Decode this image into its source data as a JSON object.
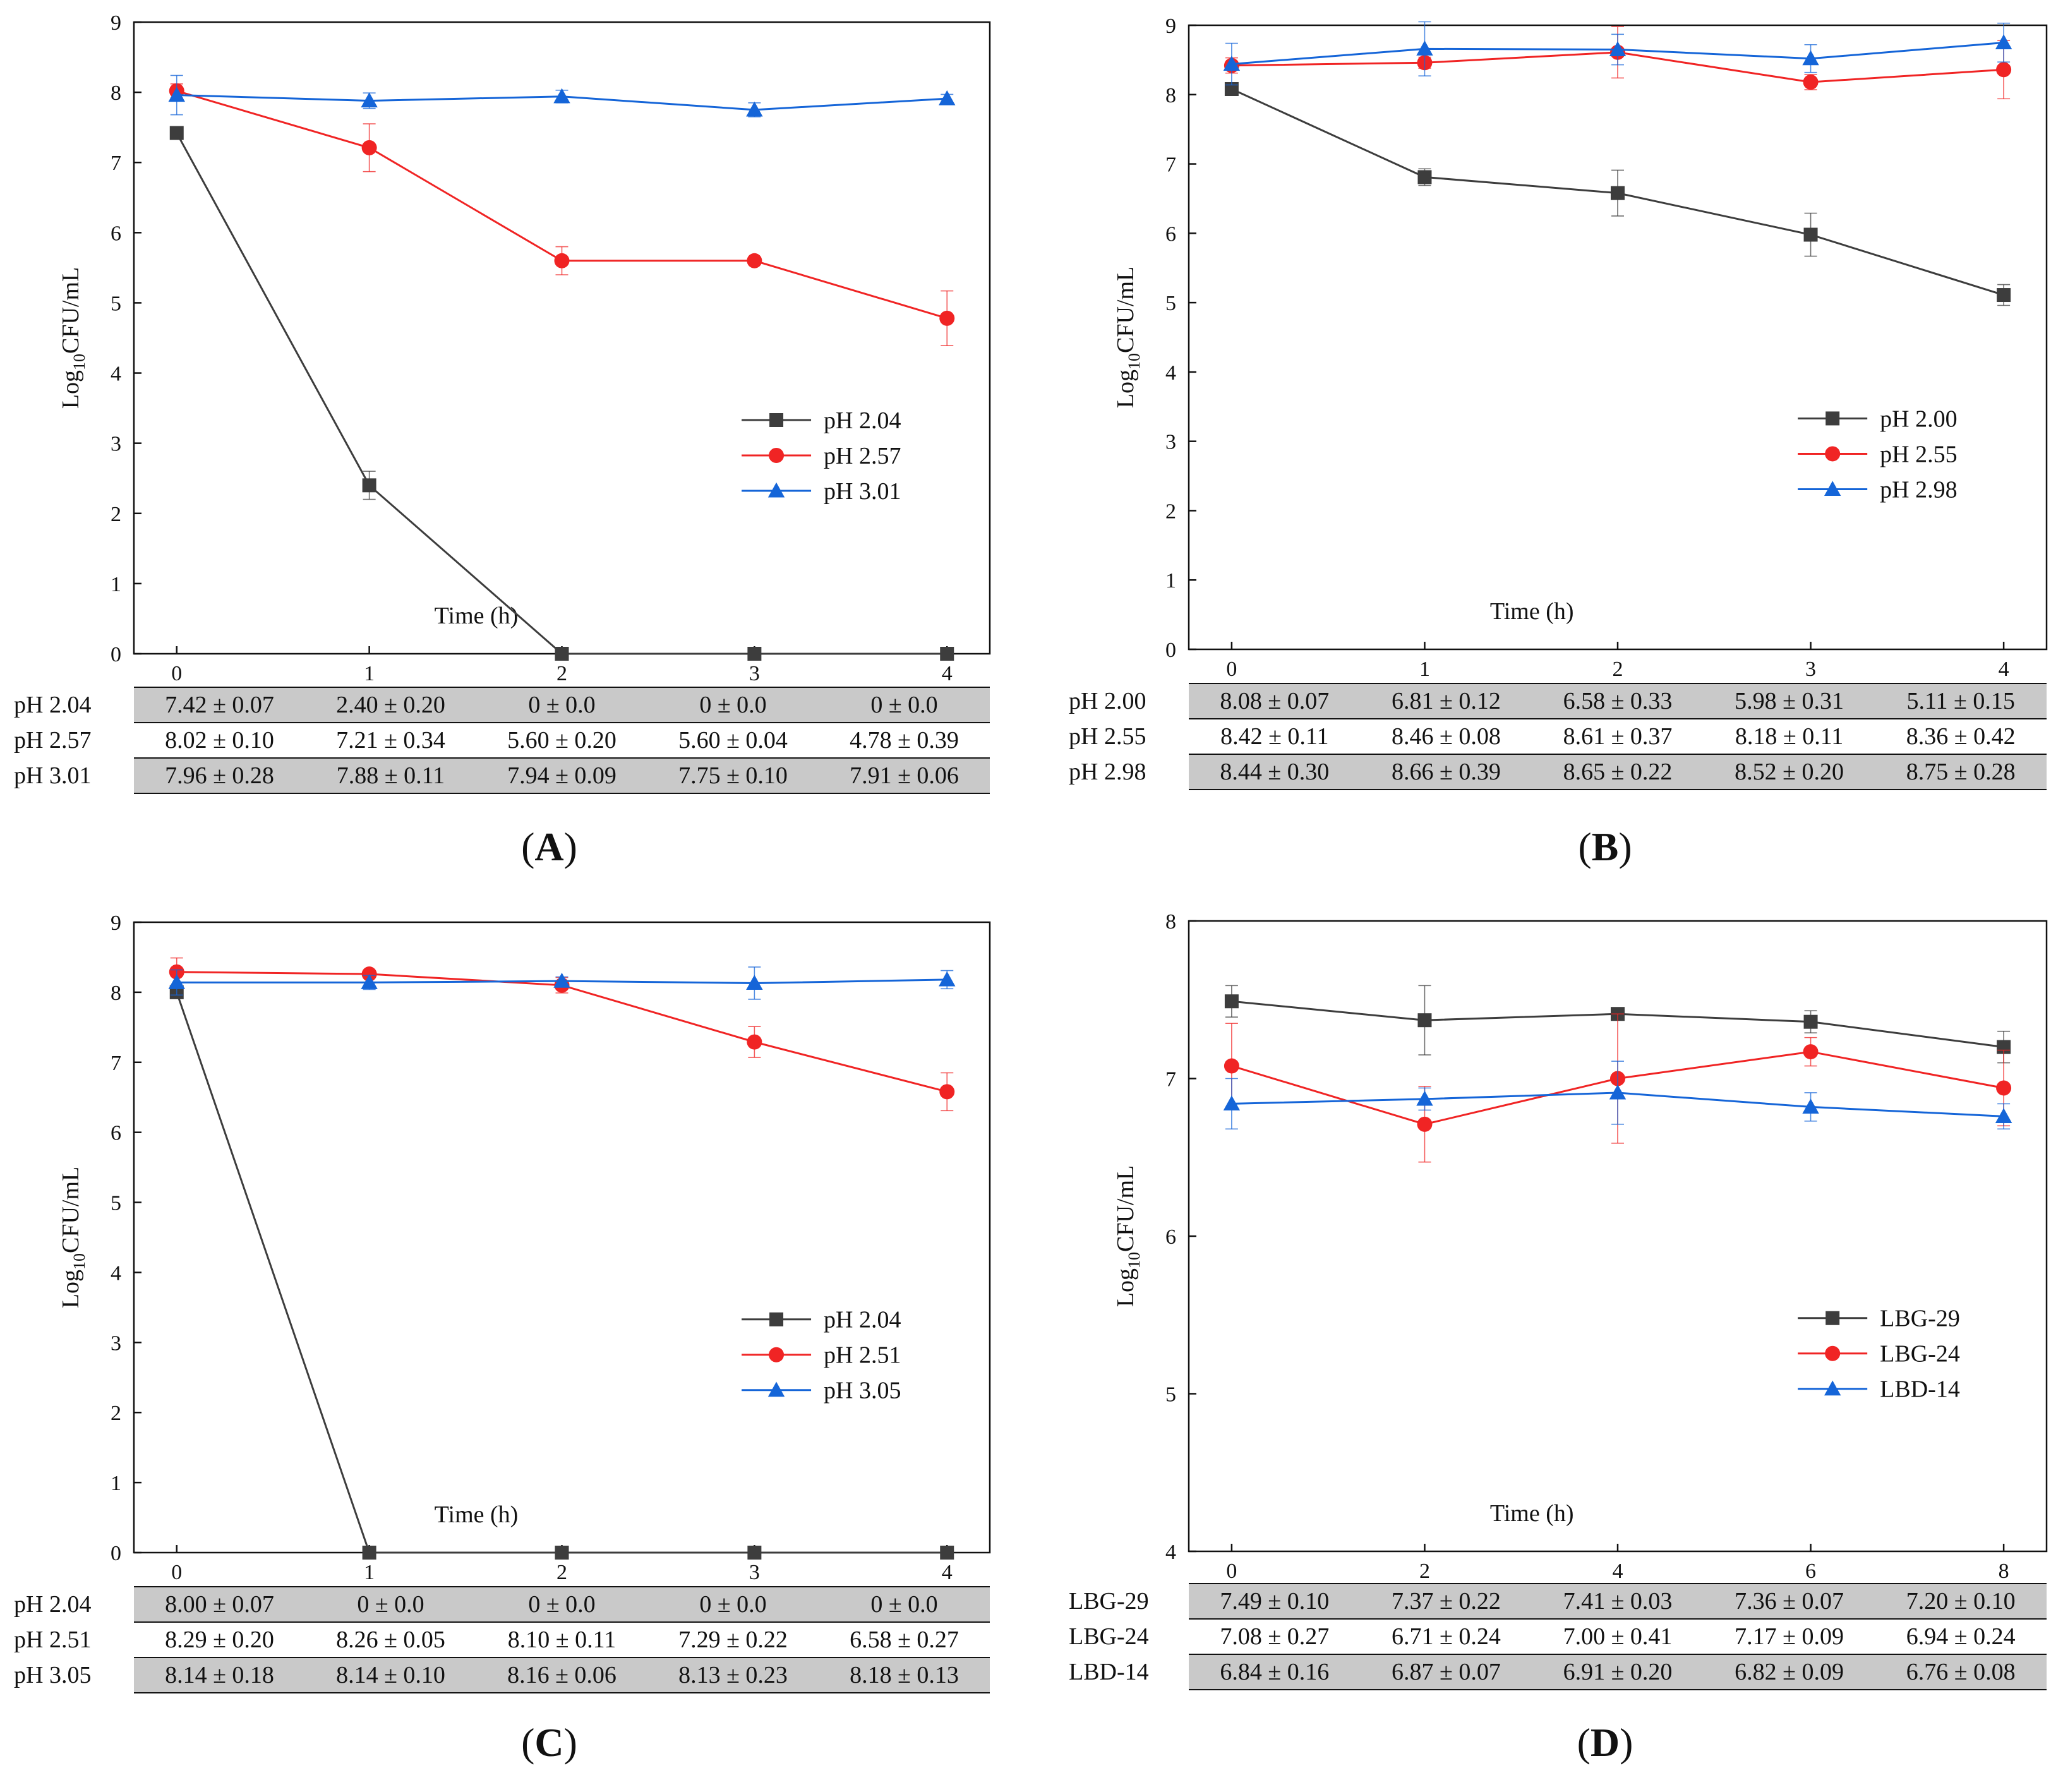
{
  "panels": [
    {
      "label": "(A)",
      "ylabel_main": "Log",
      "ylabel_sub": "10",
      "ylabel_rest": "CFU/mL",
      "xlabel": "Time (h)",
      "ylim": [
        0,
        9
      ],
      "yticks": [
        0,
        1,
        2,
        3,
        4,
        5,
        6,
        7,
        8,
        9
      ],
      "x": [
        0,
        1,
        2,
        3,
        4
      ],
      "legend_position": "center-right",
      "series": [
        {
          "name": "pH 2.04",
          "color": "#3d3d3d",
          "marker": "square",
          "values": [
            7.42,
            2.4,
            0,
            0,
            0
          ],
          "errors": [
            0.07,
            0.2,
            0,
            0,
            0
          ],
          "table": [
            "7.42 ± 0.07",
            "2.40 ± 0.20",
            "0 ± 0.0",
            "0 ± 0.0",
            "0 ± 0.0"
          ]
        },
        {
          "name": "pH 2.57",
          "color": "#f02424",
          "marker": "circle",
          "values": [
            8.02,
            7.21,
            5.6,
            5.6,
            4.78
          ],
          "errors": [
            0.1,
            0.34,
            0.2,
            0.04,
            0.39
          ],
          "table": [
            "8.02 ± 0.10",
            "7.21 ± 0.34",
            "5.60 ± 0.20",
            "5.60 ± 0.04",
            "4.78 ± 0.39"
          ]
        },
        {
          "name": "pH 3.01",
          "color": "#1565d8",
          "marker": "triangle",
          "values": [
            7.96,
            7.88,
            7.94,
            7.75,
            7.91
          ],
          "errors": [
            0.28,
            0.11,
            0.09,
            0.1,
            0.06
          ],
          "table": [
            "7.96 ± 0.28",
            "7.88 ± 0.11",
            "7.94 ± 0.09",
            "7.75 ± 0.10",
            "7.91 ± 0.06"
          ]
        }
      ]
    },
    {
      "label": "(B)",
      "ylabel_main": "Log",
      "ylabel_sub": "10",
      "ylabel_rest": "CFU/mL",
      "xlabel": "Time (h)",
      "ylim": [
        0,
        9
      ],
      "yticks": [
        0,
        1,
        2,
        3,
        4,
        5,
        6,
        7,
        8,
        9
      ],
      "x": [
        0,
        1,
        2,
        3,
        4
      ],
      "legend_position": "center-right",
      "series": [
        {
          "name": "pH 2.00",
          "color": "#3d3d3d",
          "marker": "square",
          "values": [
            8.08,
            6.81,
            6.58,
            5.98,
            5.11
          ],
          "errors": [
            0.07,
            0.12,
            0.33,
            0.31,
            0.15
          ],
          "table": [
            "8.08 ± 0.07",
            "6.81 ± 0.12",
            "6.58 ± 0.33",
            "5.98 ± 0.31",
            "5.11 ± 0.15"
          ]
        },
        {
          "name": "pH 2.55",
          "color": "#f02424",
          "marker": "circle",
          "values": [
            8.42,
            8.46,
            8.61,
            8.18,
            8.36
          ],
          "errors": [
            0.11,
            0.08,
            0.37,
            0.11,
            0.42
          ],
          "table": [
            "8.42 ± 0.11",
            "8.46 ± 0.08",
            "8.61 ± 0.37",
            "8.18 ± 0.11",
            "8.36 ± 0.42"
          ]
        },
        {
          "name": "pH 2.98",
          "color": "#1565d8",
          "marker": "triangle",
          "values": [
            8.44,
            8.66,
            8.65,
            8.52,
            8.75
          ],
          "errors": [
            0.3,
            0.39,
            0.22,
            0.2,
            0.28
          ],
          "table": [
            "8.44 ± 0.30",
            "8.66 ± 0.39",
            "8.65 ± 0.22",
            "8.52 ± 0.20",
            "8.75 ± 0.28"
          ]
        }
      ]
    },
    {
      "label": "(C)",
      "ylabel_main": "Log",
      "ylabel_sub": "10",
      "ylabel_rest": "CFU/mL",
      "xlabel": "Time (h)",
      "ylim": [
        0,
        9
      ],
      "yticks": [
        0,
        1,
        2,
        3,
        4,
        5,
        6,
        7,
        8,
        9
      ],
      "x": [
        0,
        1,
        2,
        3,
        4
      ],
      "legend_position": "center-right",
      "series": [
        {
          "name": "pH 2.04",
          "color": "#3d3d3d",
          "marker": "square",
          "values": [
            8.0,
            0,
            0,
            0,
            0
          ],
          "errors": [
            0.07,
            0,
            0,
            0,
            0
          ],
          "table": [
            "8.00 ± 0.07",
            "0 ± 0.0",
            "0 ± 0.0",
            "0 ± 0.0",
            "0 ± 0.0"
          ]
        },
        {
          "name": "pH 2.51",
          "color": "#f02424",
          "marker": "circle",
          "values": [
            8.29,
            8.26,
            8.1,
            7.29,
            6.58
          ],
          "errors": [
            0.2,
            0.05,
            0.11,
            0.22,
            0.27
          ],
          "table": [
            "8.29 ± 0.20",
            "8.26 ± 0.05",
            "8.10 ± 0.11",
            "7.29 ± 0.22",
            "6.58 ± 0.27"
          ]
        },
        {
          "name": "pH 3.05",
          "color": "#1565d8",
          "marker": "triangle",
          "values": [
            8.14,
            8.14,
            8.16,
            8.13,
            8.18
          ],
          "errors": [
            0.18,
            0.1,
            0.06,
            0.23,
            0.13
          ],
          "table": [
            "8.14 ± 0.18",
            "8.14 ± 0.10",
            "8.16 ± 0.06",
            "8.13 ± 0.23",
            "8.18 ± 0.13"
          ]
        }
      ]
    },
    {
      "label": "(D)",
      "ylabel_main": "Log",
      "ylabel_sub": "10",
      "ylabel_rest": "CFU/mL",
      "xlabel": "Time (h)",
      "ylim": [
        4,
        8
      ],
      "yticks": [
        4,
        5,
        6,
        7,
        8
      ],
      "x": [
        0,
        2,
        4,
        6,
        8
      ],
      "legend_position": "center-right",
      "series": [
        {
          "name": "LBG-29",
          "color": "#3d3d3d",
          "marker": "square",
          "values": [
            7.49,
            7.37,
            7.41,
            7.36,
            7.2
          ],
          "errors": [
            0.1,
            0.22,
            0.03,
            0.07,
            0.1
          ],
          "table": [
            "7.49 ± 0.10",
            "7.37 ± 0.22",
            "7.41 ± 0.03",
            "7.36 ± 0.07",
            "7.20 ± 0.10"
          ]
        },
        {
          "name": "LBG-24",
          "color": "#f02424",
          "marker": "circle",
          "values": [
            7.08,
            6.71,
            7.0,
            7.17,
            6.94
          ],
          "errors": [
            0.27,
            0.24,
            0.41,
            0.09,
            0.24
          ],
          "table": [
            "7.08 ± 0.27",
            "6.71 ± 0.24",
            "7.00 ± 0.41",
            "7.17 ± 0.09",
            "6.94 ± 0.24"
          ]
        },
        {
          "name": "LBD-14",
          "color": "#1565d8",
          "marker": "triangle",
          "values": [
            6.84,
            6.87,
            6.91,
            6.82,
            6.76
          ],
          "errors": [
            0.16,
            0.07,
            0.2,
            0.09,
            0.08
          ],
          "table": [
            "6.84 ± 0.16",
            "6.87 ± 0.07",
            "6.91 ± 0.20",
            "6.82 ± 0.09",
            "6.76 ± 0.08"
          ]
        }
      ]
    }
  ],
  "chart_data": [
    {
      "type": "line",
      "title": "(A)",
      "xlabel": "Time (h)",
      "ylabel": "Log10CFU/mL",
      "x": [
        0,
        1,
        2,
        3,
        4
      ],
      "ylim": [
        0,
        9
      ],
      "series": [
        {
          "name": "pH 2.04",
          "values": [
            7.42,
            2.4,
            0,
            0,
            0
          ],
          "errors": [
            0.07,
            0.2,
            0,
            0,
            0
          ]
        },
        {
          "name": "pH 2.57",
          "values": [
            8.02,
            7.21,
            5.6,
            5.6,
            4.78
          ],
          "errors": [
            0.1,
            0.34,
            0.2,
            0.04,
            0.39
          ]
        },
        {
          "name": "pH 3.01",
          "values": [
            7.96,
            7.88,
            7.94,
            7.75,
            7.91
          ],
          "errors": [
            0.28,
            0.11,
            0.09,
            0.1,
            0.06
          ]
        }
      ]
    },
    {
      "type": "line",
      "title": "(B)",
      "xlabel": "Time (h)",
      "ylabel": "Log10CFU/mL",
      "x": [
        0,
        1,
        2,
        3,
        4
      ],
      "ylim": [
        0,
        9
      ],
      "series": [
        {
          "name": "pH 2.00",
          "values": [
            8.08,
            6.81,
            6.58,
            5.98,
            5.11
          ],
          "errors": [
            0.07,
            0.12,
            0.33,
            0.31,
            0.15
          ]
        },
        {
          "name": "pH 2.55",
          "values": [
            8.42,
            8.46,
            8.61,
            8.18,
            8.36
          ],
          "errors": [
            0.11,
            0.08,
            0.37,
            0.11,
            0.42
          ]
        },
        {
          "name": "pH 2.98",
          "values": [
            8.44,
            8.66,
            8.65,
            8.52,
            8.75
          ],
          "errors": [
            0.3,
            0.39,
            0.22,
            0.2,
            0.28
          ]
        }
      ]
    },
    {
      "type": "line",
      "title": "(C)",
      "xlabel": "Time (h)",
      "ylabel": "Log10CFU/mL",
      "x": [
        0,
        1,
        2,
        3,
        4
      ],
      "ylim": [
        0,
        9
      ],
      "series": [
        {
          "name": "pH 2.04",
          "values": [
            8.0,
            0,
            0,
            0,
            0
          ],
          "errors": [
            0.07,
            0,
            0,
            0,
            0
          ]
        },
        {
          "name": "pH 2.51",
          "values": [
            8.29,
            8.26,
            8.1,
            7.29,
            6.58
          ],
          "errors": [
            0.2,
            0.05,
            0.11,
            0.22,
            0.27
          ]
        },
        {
          "name": "pH 3.05",
          "values": [
            8.14,
            8.14,
            8.16,
            8.13,
            8.18
          ],
          "errors": [
            0.18,
            0.1,
            0.06,
            0.23,
            0.13
          ]
        }
      ]
    },
    {
      "type": "line",
      "title": "(D)",
      "xlabel": "Time (h)",
      "ylabel": "Log10CFU/mL",
      "x": [
        0,
        2,
        4,
        6,
        8
      ],
      "ylim": [
        4,
        8
      ],
      "series": [
        {
          "name": "LBG-29",
          "values": [
            7.49,
            7.37,
            7.41,
            7.36,
            7.2
          ],
          "errors": [
            0.1,
            0.22,
            0.03,
            0.07,
            0.1
          ]
        },
        {
          "name": "LBG-24",
          "values": [
            7.08,
            6.71,
            7.0,
            7.17,
            6.94
          ],
          "errors": [
            0.27,
            0.24,
            0.41,
            0.09,
            0.24
          ]
        },
        {
          "name": "LBD-14",
          "values": [
            6.84,
            6.87,
            6.91,
            6.82,
            6.76
          ],
          "errors": [
            0.16,
            0.07,
            0.2,
            0.09,
            0.08
          ]
        }
      ]
    }
  ]
}
